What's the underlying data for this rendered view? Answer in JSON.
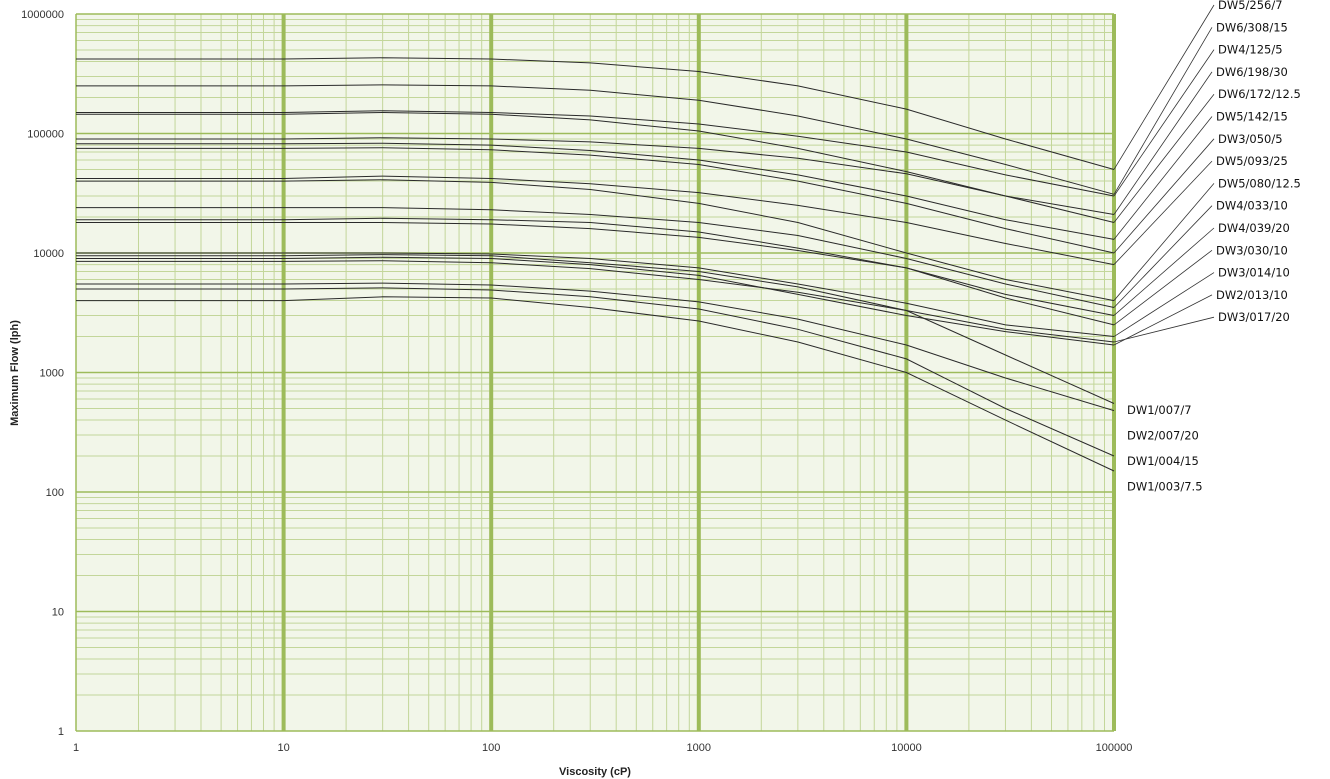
{
  "chart_data": {
    "type": "line",
    "title": "",
    "xlabel": "Viscosity (cP)",
    "ylabel": "Maximum Flow (lph)",
    "x_scale": "log",
    "y_scale": "log",
    "xlim": [
      1,
      100000
    ],
    "ylim": [
      1,
      1000000
    ],
    "x_ticks": [
      "1",
      "10",
      "100",
      "1000",
      "10000",
      "100000"
    ],
    "y_ticks": [
      "1",
      "10",
      "100",
      "1000",
      "10000",
      "100000",
      "1000000"
    ],
    "grid": true,
    "colors": {
      "plot_bg": "#f2f6e9",
      "grid_major": "#9dbb5a",
      "grid_minor": "#c3d69a",
      "line": "#2a2a2a",
      "leader": "#333333"
    },
    "x": [
      1,
      10,
      30,
      100,
      300,
      1000,
      3000,
      10000,
      30000,
      100000
    ],
    "series": [
      {
        "name": "DW5/256/7",
        "values": [
          420000,
          420000,
          430000,
          420000,
          390000,
          330000,
          250000,
          160000,
          90000,
          50000
        ]
      },
      {
        "name": "DW6/308/15",
        "values": [
          250000,
          250000,
          255000,
          250000,
          230000,
          190000,
          140000,
          90000,
          55000,
          31000
        ]
      },
      {
        "name": "DW4/125/5",
        "values": [
          150000,
          150000,
          155000,
          150000,
          140000,
          120000,
          95000,
          70000,
          45000,
          30000
        ]
      },
      {
        "name": "DW6/198/30",
        "values": [
          145000,
          145000,
          150000,
          145000,
          130000,
          105000,
          75000,
          48000,
          30000,
          21000
        ]
      },
      {
        "name": "DW6/172/12.5",
        "values": [
          90000,
          90000,
          92000,
          90000,
          85000,
          75000,
          62000,
          46000,
          30000,
          18000
        ]
      },
      {
        "name": "DW5/142/15",
        "values": [
          82000,
          82000,
          83000,
          80000,
          72000,
          60000,
          45000,
          30000,
          19000,
          13000
        ]
      },
      {
        "name": "DW3/050/5",
        "values": [
          75000,
          75000,
          76000,
          73000,
          66000,
          55000,
          40000,
          26000,
          16000,
          10000
        ]
      },
      {
        "name": "DW5/093/25",
        "values": [
          42000,
          42000,
          44000,
          42000,
          38000,
          32000,
          25000,
          18000,
          12000,
          8000
        ]
      },
      {
        "name": "DW5/080/12.5",
        "values": [
          40000,
          40000,
          41000,
          39000,
          34000,
          26000,
          18000,
          10000,
          6000,
          4000
        ]
      },
      {
        "name": "DW4/033/10",
        "values": [
          24000,
          24000,
          24000,
          23000,
          21000,
          18000,
          14000,
          9000,
          5500,
          3500
        ]
      },
      {
        "name": "DW4/039/20",
        "values": [
          19000,
          19000,
          19500,
          19000,
          18000,
          15000,
          11000,
          7500,
          4500,
          3000
        ]
      },
      {
        "name": "DW3/030/10",
        "values": [
          18000,
          18000,
          18000,
          17500,
          16000,
          13500,
          10500,
          7500,
          4200,
          2500
        ]
      },
      {
        "name": "DW3/014/10",
        "values": [
          10000,
          10000,
          10000,
          9800,
          9000,
          7500,
          5500,
          3800,
          2500,
          2000
        ]
      },
      {
        "name": "DW2/013/10",
        "values": [
          9000,
          9000,
          9200,
          9000,
          8000,
          6500,
          4500,
          3000,
          2200,
          1700
        ]
      },
      {
        "name": "DW3/017/20",
        "values": [
          8500,
          8500,
          8600,
          8300,
          7400,
          6000,
          4700,
          3300,
          2300,
          1800
        ]
      },
      {
        "name": "DW1/007/7",
        "values": [
          9500,
          9500,
          9700,
          9500,
          8300,
          7000,
          5200,
          3300,
          1400,
          550
        ]
      },
      {
        "name": "DW2/007/20",
        "values": [
          5500,
          5500,
          5600,
          5400,
          4800,
          3900,
          2800,
          1700,
          900,
          480
        ]
      },
      {
        "name": "DW1/004/15",
        "values": [
          5000,
          5000,
          5100,
          4900,
          4300,
          3400,
          2300,
          1300,
          500,
          200
        ]
      },
      {
        "name": "DW1/003/7.5",
        "values": [
          4000,
          4000,
          4300,
          4200,
          3500,
          2700,
          1800,
          1000,
          400,
          150
        ]
      }
    ],
    "labels_right": [
      {
        "text": "DW5/256/7",
        "series": "DW5/256/7"
      },
      {
        "text": "DW6/308/15",
        "series": "DW6/308/15"
      },
      {
        "text": "DW4/125/5",
        "series": "DW4/125/5"
      },
      {
        "text": "DW6/198/30",
        "series": "DW6/198/30"
      },
      {
        "text": "DW6/172/12.5",
        "series": "DW6/172/12.5"
      },
      {
        "text": "DW5/142/15",
        "series": "DW5/142/15"
      },
      {
        "text": "DW3/050/5",
        "series": "DW3/050/5"
      },
      {
        "text": "DW5/093/25",
        "series": "DW5/093/25"
      },
      {
        "text": "DW5/080/12.5",
        "series": "DW5/080/12.5"
      },
      {
        "text": "DW4/033/10",
        "series": "DW4/033/10"
      },
      {
        "text": "DW4/039/20",
        "series": "DW4/039/20"
      },
      {
        "text": "DW3/030/10",
        "series": "DW3/030/10"
      },
      {
        "text": "DW3/014/10",
        "series": "DW3/014/10"
      },
      {
        "text": "DW2/013/10",
        "series": "DW2/013/10"
      },
      {
        "text": "DW3/017/20",
        "series": "DW3/017/20"
      }
    ],
    "labels_bottom": [
      {
        "text": "DW1/007/7",
        "series": "DW1/007/7"
      },
      {
        "text": "DW2/007/20",
        "series": "DW2/007/20"
      },
      {
        "text": "DW1/004/15",
        "series": "DW1/004/15"
      },
      {
        "text": "DW1/003/7.5",
        "series": "DW1/003/7.5"
      }
    ]
  }
}
